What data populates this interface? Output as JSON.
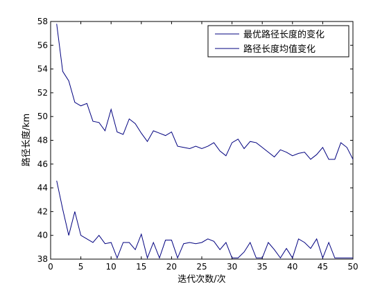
{
  "chart_data": {
    "type": "line",
    "title": "",
    "xlabel": "迭代次数/次",
    "ylabel": "路径长度/km",
    "xlim": [
      0,
      50
    ],
    "ylim": [
      38,
      58
    ],
    "xticks": [
      0,
      5,
      10,
      15,
      20,
      25,
      30,
      35,
      40,
      45,
      50
    ],
    "yticks": [
      38,
      40,
      42,
      44,
      46,
      48,
      50,
      52,
      54,
      56,
      58
    ],
    "grid": false,
    "legend_position": "top-right",
    "x": [
      1,
      2,
      3,
      4,
      5,
      6,
      7,
      8,
      9,
      10,
      11,
      12,
      13,
      14,
      15,
      16,
      17,
      18,
      19,
      20,
      21,
      22,
      23,
      24,
      25,
      26,
      27,
      28,
      29,
      30,
      31,
      32,
      33,
      34,
      35,
      36,
      37,
      38,
      39,
      40,
      41,
      42,
      43,
      44,
      45,
      46,
      47,
      48,
      49,
      50
    ],
    "series": [
      {
        "name": "最优路径长度的变化",
        "color": "#00007f",
        "values": [
          44.6,
          42.2,
          40.0,
          42.0,
          40.0,
          39.7,
          39.4,
          40.0,
          39.3,
          39.4,
          38.1,
          39.4,
          39.4,
          38.8,
          40.1,
          38.1,
          39.4,
          38.1,
          39.6,
          39.6,
          38.1,
          39.3,
          39.4,
          39.3,
          39.4,
          39.7,
          39.5,
          38.8,
          39.4,
          38.1,
          38.1,
          38.6,
          39.4,
          38.1,
          38.1,
          39.4,
          38.8,
          38.1,
          38.9,
          38.1,
          39.7,
          39.4,
          38.9,
          39.7,
          38.1,
          39.4,
          38.1,
          38.1,
          38.1,
          38.1
        ]
      },
      {
        "name": "路径长度均值变化",
        "color": "#00007f",
        "values": [
          57.8,
          53.8,
          53.0,
          51.2,
          50.9,
          51.1,
          49.6,
          49.5,
          48.8,
          50.6,
          48.7,
          48.5,
          49.8,
          49.4,
          48.6,
          47.9,
          48.8,
          48.6,
          48.4,
          48.7,
          47.5,
          47.4,
          47.3,
          47.5,
          47.3,
          47.5,
          47.8,
          47.1,
          46.7,
          47.8,
          48.1,
          47.3,
          47.9,
          47.8,
          47.4,
          47.0,
          46.6,
          47.2,
          47.0,
          46.7,
          46.9,
          47.0,
          46.4,
          46.8,
          47.4,
          46.4,
          46.4,
          47.8,
          47.4,
          46.4
        ]
      }
    ]
  }
}
